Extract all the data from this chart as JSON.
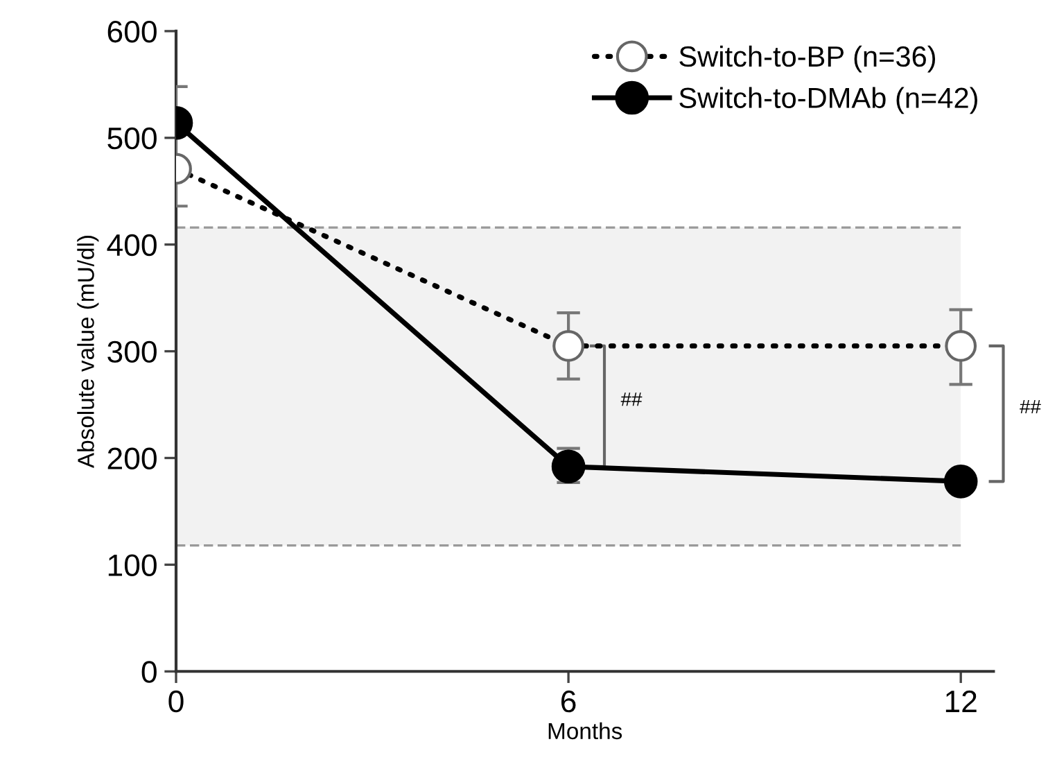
{
  "chart_data": {
    "type": "line",
    "xlabel": "Months",
    "ylabel": "Absolute value (mU/dl)",
    "x": [
      0,
      6,
      12
    ],
    "xlim": [
      0,
      12.5
    ],
    "xticks": [
      0,
      6,
      12
    ],
    "ylim": [
      0,
      600
    ],
    "yticks": [
      0,
      100,
      200,
      300,
      400,
      500,
      600
    ],
    "marker": "circle",
    "legend": "top right",
    "grid": false,
    "series": [
      {
        "name": "Switch-to-BP (n=36)",
        "color": "#ffffff",
        "line_style": "dotted",
        "values": [
          471,
          305,
          305
        ],
        "errors": [
          null,
          [
            274,
            336
          ],
          [
            269,
            339
          ]
        ]
      },
      {
        "name": "Switch-to-DMAb (n=42)",
        "color": "#000000",
        "line_style": "solid",
        "values": [
          514,
          192,
          178
        ],
        "errors": [
          [
            436,
            548
          ],
          [
            177,
            209
          ],
          null
        ]
      }
    ],
    "bands": [
      {
        "axis": "y",
        "from": 118,
        "to": 416,
        "color": "#f2f2f2"
      }
    ],
    "ref_lines": [
      {
        "axis": "y",
        "value": 118,
        "color": "#999999",
        "line_style": "dashed"
      },
      {
        "axis": "y",
        "value": 416,
        "color": "#999999",
        "line_style": "dashed"
      }
    ],
    "annotations": [
      "##",
      "##"
    ]
  }
}
